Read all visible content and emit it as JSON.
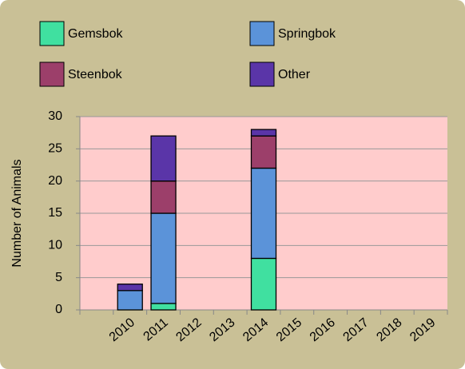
{
  "chart_data": {
    "type": "stacked_bar",
    "y_label": "Number of Animals",
    "categories": [
      null,
      "2010",
      "2011",
      "2012",
      "2013",
      "2014",
      "2015",
      "2016",
      "2017",
      "2018",
      "2019"
    ],
    "series": [
      {
        "name": "Gemsbok",
        "color": "#40e0a0",
        "values": [
          null,
          0,
          1,
          0,
          0,
          8,
          0,
          0,
          0,
          0,
          0
        ]
      },
      {
        "name": "Springbok",
        "color": "#5b93d9",
        "values": [
          null,
          3,
          14,
          0,
          0,
          14,
          0,
          0,
          0,
          0,
          0
        ]
      },
      {
        "name": "Steenbok",
        "color": "#9c3f6a",
        "values": [
          null,
          0,
          5,
          0,
          0,
          5,
          0,
          0,
          0,
          0,
          0
        ]
      },
      {
        "name": "Other",
        "color": "#5a35a8",
        "values": [
          null,
          1,
          7,
          0,
          0,
          1,
          0,
          0,
          0,
          0,
          0
        ]
      }
    ],
    "ylim": [
      0,
      30
    ],
    "yticks": [
      0,
      5,
      10,
      15,
      20,
      25,
      30
    ],
    "grid": true,
    "plot_background": "#ffcccc",
    "background": "#c9c096"
  }
}
